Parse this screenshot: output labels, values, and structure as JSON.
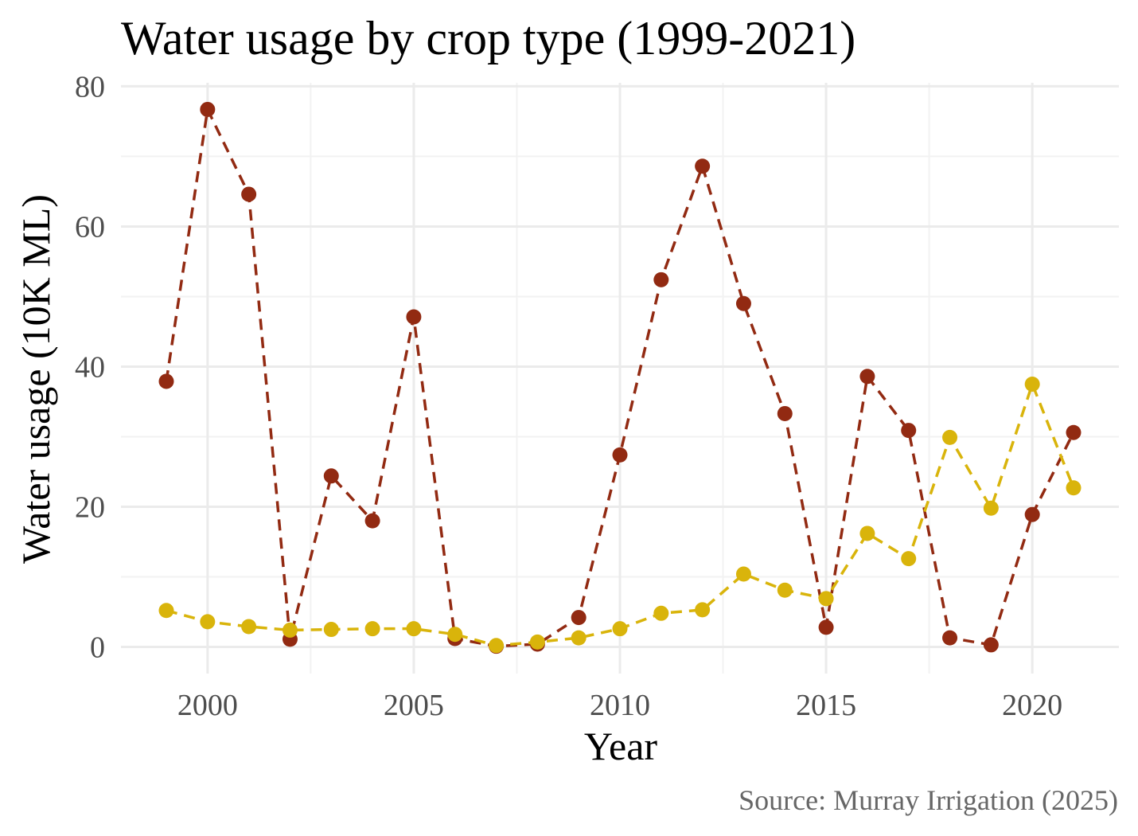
{
  "chart_data": {
    "type": "line",
    "title": "Water usage by crop type (1999-2021)",
    "xlabel": "Year",
    "ylabel": "Water usage (10K ML)",
    "caption": "Source: Murray Irrigation (2025)",
    "x": [
      1999,
      2000,
      2001,
      2002,
      2003,
      2004,
      2005,
      2006,
      2007,
      2008,
      2009,
      2010,
      2011,
      2012,
      2013,
      2014,
      2015,
      2016,
      2017,
      2018,
      2019,
      2020,
      2021
    ],
    "xlim": [
      1997.9,
      2022.1
    ],
    "ylim": [
      -3.8,
      80.5
    ],
    "x_ticks": [
      2000,
      2005,
      2010,
      2015,
      2020
    ],
    "x_tick_labels": [
      "2000",
      "2005",
      "2010",
      "2015",
      "2020"
    ],
    "y_ticks": [
      0,
      20,
      40,
      60,
      80
    ],
    "y_tick_labels": [
      "0",
      "20",
      "40",
      "60",
      "80"
    ],
    "grid": true,
    "legend": "none",
    "series": [
      {
        "color": "#922a12",
        "values": [
          37.9,
          76.7,
          64.6,
          1.1,
          24.4,
          18.0,
          47.1,
          1.2,
          0.1,
          0.4,
          4.2,
          27.4,
          52.4,
          68.6,
          49.0,
          33.3,
          2.8,
          38.6,
          30.9,
          1.3,
          0.3,
          18.9,
          30.6
        ]
      },
      {
        "color": "#d9b40b",
        "values": [
          5.2,
          3.6,
          2.9,
          2.4,
          2.5,
          2.6,
          2.6,
          1.8,
          0.2,
          0.7,
          1.3,
          2.6,
          4.8,
          5.3,
          10.4,
          8.1,
          6.9,
          16.2,
          12.6,
          29.9,
          19.8,
          37.5,
          22.7
        ]
      }
    ]
  }
}
